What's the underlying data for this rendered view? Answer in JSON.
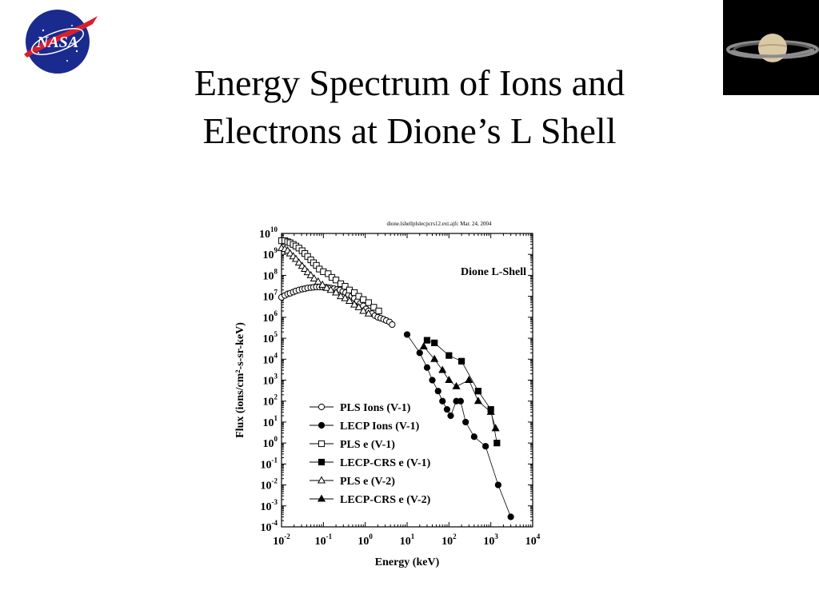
{
  "slide": {
    "title_line1": "Energy Spectrum of Ions and",
    "title_line2": "Electrons at Dione’s L Shell",
    "logo_icon": "nasa-logo-icon",
    "corner_image_icon": "saturn-image-icon"
  },
  "chart_data": {
    "type": "scatter",
    "header_note": "dione.lshellplslecpcrs12.ext.ajfc   Mar. 24, 2004",
    "annotation": "Dione L-Shell",
    "xlabel": "Energy (keV)",
    "ylabel": "Flux (ions/cm²-s-sr-keV)",
    "x_scale": "log",
    "y_scale": "log",
    "xlim": [
      0.01,
      10000
    ],
    "ylim": [
      0.0001,
      10000000000
    ],
    "x_ticks": [
      {
        "base": "10",
        "exp": "-2"
      },
      {
        "base": "10",
        "exp": "-1"
      },
      {
        "base": "10",
        "exp": "0"
      },
      {
        "base": "10",
        "exp": "1"
      },
      {
        "base": "10",
        "exp": "2"
      },
      {
        "base": "10",
        "exp": "3"
      },
      {
        "base": "10",
        "exp": "4"
      }
    ],
    "y_ticks": [
      {
        "base": "10",
        "exp": "10"
      },
      {
        "base": "10",
        "exp": "9"
      },
      {
        "base": "10",
        "exp": "8"
      },
      {
        "base": "10",
        "exp": "7"
      },
      {
        "base": "10",
        "exp": "6"
      },
      {
        "base": "10",
        "exp": "5"
      },
      {
        "base": "10",
        "exp": "4"
      },
      {
        "base": "10",
        "exp": "3"
      },
      {
        "base": "10",
        "exp": "2"
      },
      {
        "base": "10",
        "exp": "1"
      },
      {
        "base": "10",
        "exp": "0"
      },
      {
        "base": "10",
        "exp": "-1"
      },
      {
        "base": "10",
        "exp": "-2"
      },
      {
        "base": "10",
        "exp": "-3"
      },
      {
        "base": "10",
        "exp": "-4"
      }
    ],
    "legend_position": "lower-left",
    "series": [
      {
        "name": "PLS Ions (V-1)",
        "marker": "circle-open",
        "x": [
          0.01,
          0.012,
          0.014,
          0.016,
          0.019,
          0.022,
          0.026,
          0.031,
          0.036,
          0.042,
          0.05,
          0.058,
          0.068,
          0.08,
          0.094,
          0.11,
          0.13,
          0.15,
          0.18,
          0.21,
          0.25,
          0.29,
          0.34,
          0.4,
          0.47,
          0.55,
          0.65,
          0.75,
          0.9,
          1.05,
          1.2,
          1.45,
          1.7,
          2,
          2.35,
          2.75,
          3.2,
          3.8,
          4.4
        ],
        "y": [
          9000000,
          11000000,
          13000000,
          14000000,
          16000000,
          18000000,
          20000000,
          22000000,
          23000000,
          25000000,
          26000000,
          27000000,
          28000000,
          28000000,
          28000000,
          27000000,
          26000000,
          25000000,
          23000000,
          21000000,
          20000000,
          17000000,
          15000000,
          12000000,
          10000000,
          8000000,
          6000000,
          4500000,
          3500000,
          2500000,
          2000000,
          1500000,
          1200000,
          1000000,
          900000,
          800000,
          700000,
          600000,
          450000
        ]
      },
      {
        "name": "LECP Ions (V-1)",
        "marker": "circle-filled",
        "x": [
          10,
          20,
          30,
          40,
          55,
          70,
          90,
          110,
          150,
          190,
          250,
          400,
          750,
          1500,
          3000
        ],
        "y": [
          150000,
          20000,
          4000,
          1000,
          300,
          100,
          40,
          20,
          100,
          100,
          10,
          2,
          0.7,
          0.01,
          0.0003
        ]
      },
      {
        "name": "PLS e (V-1)",
        "marker": "square-open",
        "x": [
          0.01,
          0.012,
          0.014,
          0.016,
          0.019,
          0.022,
          0.026,
          0.031,
          0.036,
          0.042,
          0.05,
          0.058,
          0.068,
          0.08,
          0.1,
          0.13,
          0.16,
          0.2,
          0.26,
          0.33,
          0.42,
          0.55,
          0.7,
          0.9,
          1.2,
          1.6,
          2.1
        ],
        "y": [
          4500000000,
          4500000000,
          4000000000,
          3600000000,
          3000000000,
          2500000000,
          2000000000,
          1500000000,
          1100000000,
          800000000,
          550000000,
          400000000,
          300000000,
          200000000,
          150000000,
          120000000,
          80000000,
          60000000,
          40000000,
          30000000,
          20000000,
          15000000,
          10000000,
          7000000,
          5000000,
          3000000,
          2000000
        ]
      },
      {
        "name": "LECP-CRS e (V-1)",
        "marker": "square-filled",
        "x": [
          30,
          45,
          100,
          200,
          500,
          1000,
          1400
        ],
        "y": [
          80000,
          60000,
          15000,
          8000,
          300,
          40,
          1
        ]
      },
      {
        "name": "PLS e (V-2)",
        "marker": "triangle-open",
        "x": [
          0.01,
          0.012,
          0.014,
          0.016,
          0.019,
          0.022,
          0.026,
          0.031,
          0.036,
          0.042,
          0.05,
          0.06,
          0.075,
          0.095,
          0.12,
          0.15,
          0.2,
          0.26,
          0.33,
          0.42,
          0.55,
          0.7,
          0.9,
          1.2
        ],
        "y": [
          2000000000,
          1800000000,
          1500000000,
          1100000000,
          800000000,
          600000000,
          400000000,
          280000000,
          200000000,
          140000000,
          100000000,
          70000000,
          50000000,
          35000000,
          25000000,
          20000000,
          15000000,
          10000000,
          8000000,
          6000000,
          4000000,
          3000000,
          2000000,
          1500000
        ]
      },
      {
        "name": "LECP-CRS e (V-2)",
        "marker": "triangle-filled",
        "x": [
          25,
          45,
          70,
          100,
          150,
          300,
          500,
          1000,
          1300
        ],
        "y": [
          40000,
          10000,
          3000,
          1000,
          500,
          1000,
          100,
          30,
          5
        ]
      }
    ]
  }
}
